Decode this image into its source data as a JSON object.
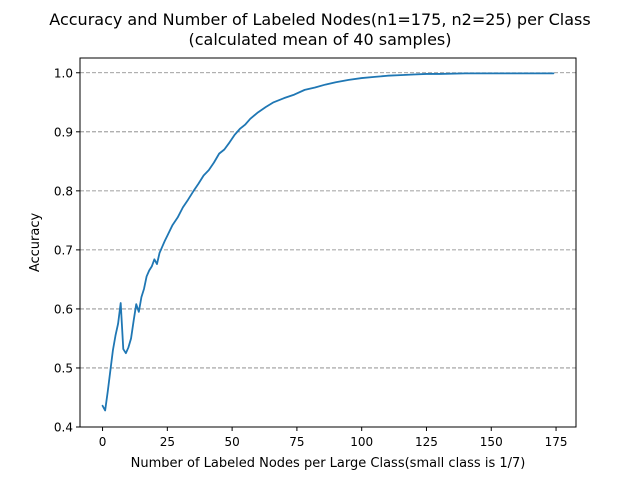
{
  "chart_data": {
    "type": "line",
    "title_line1": "Accuracy and Number of Labeled Nodes(n1=175, n2=25) per Class",
    "title_line2": "(calculated mean of 40 samples)",
    "xlabel": "Number of Labeled Nodes per Large Class(small class is 1/7)",
    "ylabel": "Accuracy",
    "xlim": [
      -8.7,
      182.7
    ],
    "ylim": [
      0.4,
      1.025
    ],
    "xticks": [
      0,
      25,
      50,
      75,
      100,
      125,
      150,
      175
    ],
    "yticks": [
      0.4,
      0.5,
      0.6,
      0.7,
      0.8,
      0.9,
      1.0
    ],
    "xtick_labels": [
      "0",
      "25",
      "50",
      "75",
      "100",
      "125",
      "150",
      "175"
    ],
    "ytick_labels": [
      "0.4",
      "0.5",
      "0.6",
      "0.7",
      "0.8",
      "0.9",
      "1.0"
    ],
    "grid": "horizontal-dashed",
    "line_color": "#1f77b4",
    "x": [
      0,
      1,
      2,
      3,
      4,
      5,
      6,
      7,
      8,
      9,
      10,
      11,
      12,
      13,
      14,
      15,
      16,
      17,
      18,
      19,
      20,
      21,
      22,
      23,
      24,
      25,
      27,
      29,
      31,
      33,
      35,
      37,
      39,
      41,
      43,
      45,
      47,
      49,
      51,
      53,
      55,
      57,
      60,
      63,
      66,
      70,
      74,
      78,
      82,
      86,
      90,
      95,
      100,
      105,
      110,
      115,
      120,
      125,
      130,
      140,
      150,
      160,
      174
    ],
    "y": [
      0.436,
      0.428,
      0.46,
      0.495,
      0.53,
      0.555,
      0.575,
      0.61,
      0.532,
      0.525,
      0.535,
      0.55,
      0.58,
      0.608,
      0.595,
      0.62,
      0.634,
      0.655,
      0.665,
      0.672,
      0.684,
      0.676,
      0.695,
      0.705,
      0.715,
      0.724,
      0.742,
      0.755,
      0.772,
      0.785,
      0.799,
      0.812,
      0.826,
      0.835,
      0.848,
      0.863,
      0.87,
      0.882,
      0.895,
      0.905,
      0.912,
      0.922,
      0.933,
      0.942,
      0.95,
      0.957,
      0.963,
      0.971,
      0.975,
      0.98,
      0.984,
      0.988,
      0.991,
      0.993,
      0.995,
      0.996,
      0.997,
      0.998,
      0.998,
      0.999,
      0.999,
      0.999,
      0.999
    ]
  }
}
